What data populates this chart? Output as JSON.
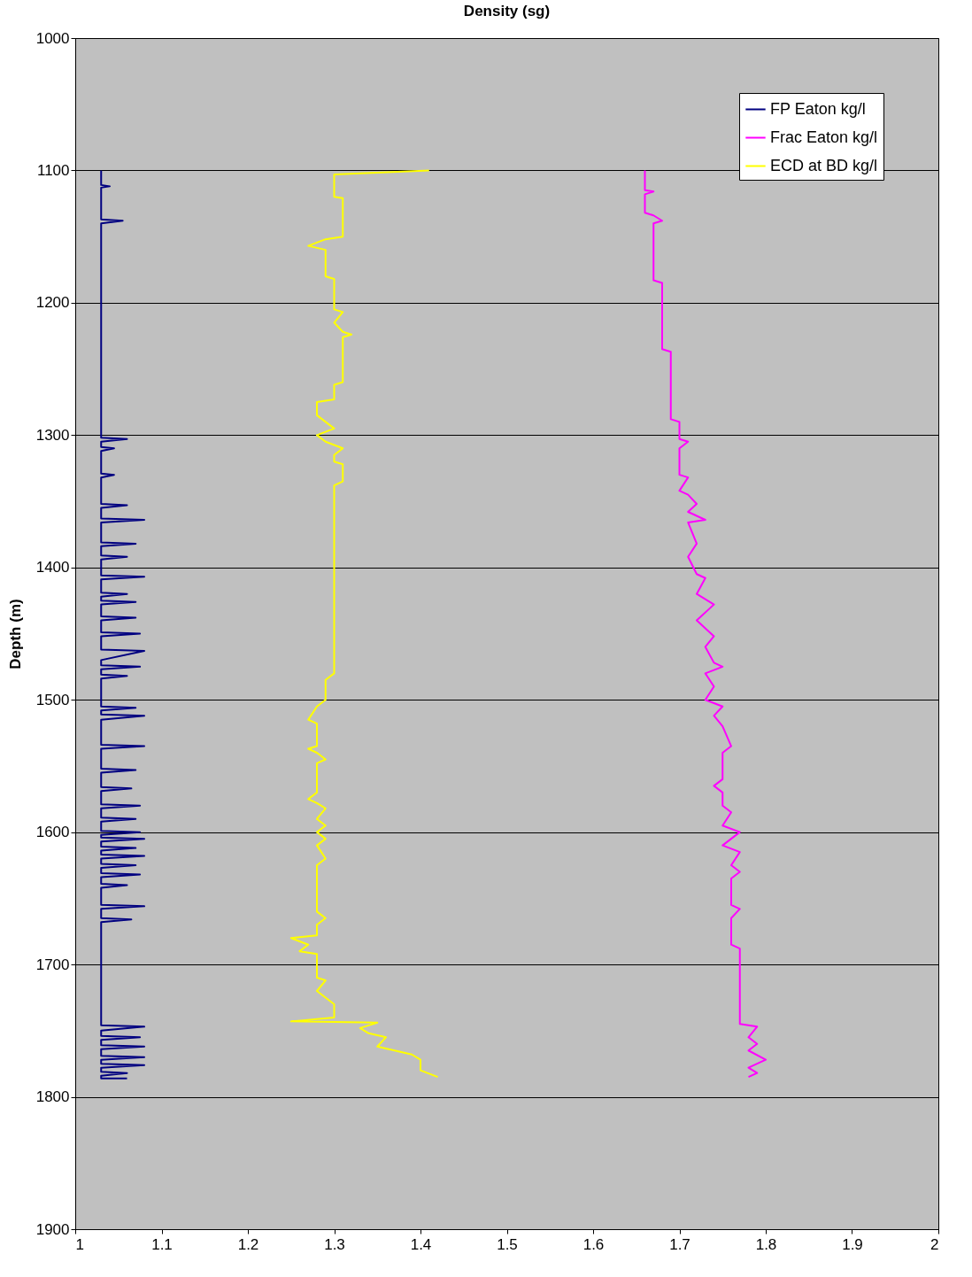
{
  "chart_data": {
    "type": "line",
    "title": "Density (sg)",
    "ylabel": "Depth (m)",
    "xlim": [
      1,
      2
    ],
    "xticks": [
      1,
      1.1,
      1.2,
      1.3,
      1.4,
      1.5,
      1.6,
      1.7,
      1.8,
      1.9,
      2
    ],
    "ylim": [
      1900,
      1000
    ],
    "yticks": [
      1000,
      1100,
      1200,
      1300,
      1400,
      1500,
      1600,
      1700,
      1800,
      1900
    ],
    "grid": "y",
    "legend": "top right",
    "series": [
      {
        "name": "FP Eaton kg/l",
        "color": "#000080",
        "x": [
          1.03,
          1.03,
          1.04,
          1.03,
          1.03,
          1.055,
          1.03,
          1.03,
          1.06,
          1.03,
          1.03,
          1.045,
          1.03,
          1.03,
          1.045,
          1.03,
          1.03,
          1.06,
          1.03,
          1.03,
          1.08,
          1.03,
          1.03,
          1.07,
          1.03,
          1.03,
          1.06,
          1.03,
          1.03,
          1.08,
          1.03,
          1.03,
          1.06,
          1.03,
          1.03,
          1.07,
          1.03,
          1.03,
          1.07,
          1.03,
          1.03,
          1.075,
          1.03,
          1.03,
          1.08,
          1.03,
          1.03,
          1.075,
          1.03,
          1.03,
          1.06,
          1.03,
          1.03,
          1.07,
          1.03,
          1.03,
          1.08,
          1.03,
          1.03,
          1.08,
          1.03,
          1.03,
          1.07,
          1.03,
          1.03,
          1.065,
          1.03,
          1.03,
          1.075,
          1.03,
          1.03,
          1.07,
          1.03,
          1.03,
          1.075,
          1.03,
          1.03,
          1.08,
          1.03,
          1.03,
          1.07,
          1.03,
          1.03,
          1.08,
          1.03,
          1.03,
          1.07,
          1.03,
          1.03,
          1.075,
          1.03,
          1.03,
          1.06,
          1.03,
          1.03,
          1.08,
          1.03,
          1.03,
          1.065,
          1.03,
          1.03,
          1.08,
          1.03,
          1.03,
          1.075,
          1.03,
          1.03,
          1.08,
          1.03,
          1.03,
          1.08,
          1.03,
          1.03,
          1.08,
          1.03,
          1.03,
          1.06,
          1.03,
          1.03,
          1.06
        ],
        "values": [
          1100,
          1111,
          1112,
          1113,
          1137,
          1138,
          1140,
          1302,
          1303,
          1305,
          1309,
          1310,
          1312,
          1329,
          1330,
          1332,
          1352,
          1353,
          1355,
          1363,
          1364,
          1366,
          1381,
          1382,
          1384,
          1391,
          1392,
          1394,
          1406,
          1407,
          1409,
          1419,
          1420,
          1422,
          1425,
          1426,
          1428,
          1437,
          1438,
          1440,
          1449,
          1450,
          1452,
          1462,
          1463,
          1470,
          1474,
          1475,
          1477,
          1481,
          1482,
          1484,
          1505,
          1506,
          1508,
          1511,
          1512,
          1515,
          1534,
          1535,
          1537,
          1552,
          1553,
          1555,
          1566,
          1567,
          1569,
          1579,
          1580,
          1582,
          1589,
          1590,
          1592,
          1599,
          1600,
          1602,
          1604,
          1605,
          1607,
          1611,
          1612,
          1614,
          1617,
          1618,
          1620,
          1624,
          1625,
          1627,
          1631,
          1632,
          1634,
          1639,
          1640,
          1642,
          1655,
          1656,
          1658,
          1665,
          1666,
          1668,
          1746,
          1747,
          1750,
          1754,
          1755,
          1757,
          1761,
          1762,
          1764,
          1769,
          1770,
          1772,
          1775,
          1776,
          1778,
          1781,
          1782,
          1784,
          1786,
          1786
        ]
      },
      {
        "name": "Frac Eaton kg/l",
        "color": "#ff00ff",
        "x": [
          1.66,
          1.66,
          1.67,
          1.66,
          1.66,
          1.67,
          1.68,
          1.67,
          1.67,
          1.68,
          1.68,
          1.69,
          1.69,
          1.7,
          1.7,
          1.71,
          1.7,
          1.7,
          1.71,
          1.7,
          1.71,
          1.72,
          1.71,
          1.73,
          1.71,
          1.72,
          1.71,
          1.72,
          1.73,
          1.72,
          1.74,
          1.72,
          1.74,
          1.73,
          1.74,
          1.75,
          1.73,
          1.74,
          1.73,
          1.75,
          1.74,
          1.75,
          1.76,
          1.75,
          1.75,
          1.74,
          1.75,
          1.75,
          1.76,
          1.75,
          1.77,
          1.75,
          1.77,
          1.76,
          1.77,
          1.76,
          1.76,
          1.77,
          1.76,
          1.76,
          1.77,
          1.77,
          1.79,
          1.78,
          1.79,
          1.78,
          1.8,
          1.78,
          1.79,
          1.78
        ],
        "values": [
          1100,
          1115,
          1116,
          1118,
          1132,
          1134,
          1138,
          1140,
          1183,
          1185,
          1235,
          1237,
          1288,
          1290,
          1303,
          1305,
          1310,
          1330,
          1332,
          1342,
          1345,
          1352,
          1358,
          1364,
          1366,
          1382,
          1392,
          1405,
          1408,
          1420,
          1428,
          1440,
          1452,
          1460,
          1472,
          1475,
          1480,
          1490,
          1500,
          1505,
          1512,
          1520,
          1535,
          1540,
          1560,
          1565,
          1570,
          1580,
          1585,
          1595,
          1600,
          1610,
          1615,
          1625,
          1630,
          1635,
          1655,
          1658,
          1665,
          1685,
          1688,
          1745,
          1747,
          1755,
          1760,
          1765,
          1772,
          1778,
          1782,
          1785
        ]
      },
      {
        "name": "ECD at BD kg/l",
        "color": "#ffff00",
        "x": [
          1.41,
          1.3,
          1.3,
          1.31,
          1.31,
          1.29,
          1.27,
          1.29,
          1.29,
          1.3,
          1.3,
          1.31,
          1.3,
          1.31,
          1.32,
          1.31,
          1.31,
          1.3,
          1.3,
          1.28,
          1.28,
          1.29,
          1.3,
          1.28,
          1.29,
          1.31,
          1.3,
          1.3,
          1.31,
          1.31,
          1.3,
          1.3,
          1.29,
          1.29,
          1.28,
          1.27,
          1.28,
          1.28,
          1.27,
          1.28,
          1.29,
          1.28,
          1.28,
          1.27,
          1.28,
          1.29,
          1.28,
          1.29,
          1.28,
          1.29,
          1.28,
          1.29,
          1.28,
          1.28,
          1.29,
          1.28,
          1.28,
          1.25,
          1.27,
          1.26,
          1.28,
          1.28,
          1.29,
          1.28,
          1.29,
          1.3,
          1.3,
          1.25,
          1.35,
          1.33,
          1.34,
          1.36,
          1.35,
          1.37,
          1.39,
          1.4,
          1.4,
          1.42
        ],
        "values": [
          1100,
          1103,
          1120,
          1121,
          1150,
          1152,
          1157,
          1160,
          1180,
          1182,
          1205,
          1207,
          1215,
          1222,
          1224,
          1226,
          1260,
          1262,
          1273,
          1275,
          1285,
          1290,
          1295,
          1300,
          1305,
          1310,
          1315,
          1320,
          1322,
          1335,
          1338,
          1480,
          1485,
          1500,
          1505,
          1515,
          1518,
          1535,
          1537,
          1540,
          1545,
          1548,
          1570,
          1575,
          1578,
          1582,
          1590,
          1595,
          1600,
          1605,
          1610,
          1620,
          1625,
          1660,
          1665,
          1670,
          1678,
          1680,
          1685,
          1690,
          1692,
          1710,
          1712,
          1720,
          1725,
          1730,
          1740,
          1743,
          1744,
          1748,
          1752,
          1755,
          1762,
          1765,
          1768,
          1772,
          1780,
          1785
        ]
      }
    ]
  }
}
